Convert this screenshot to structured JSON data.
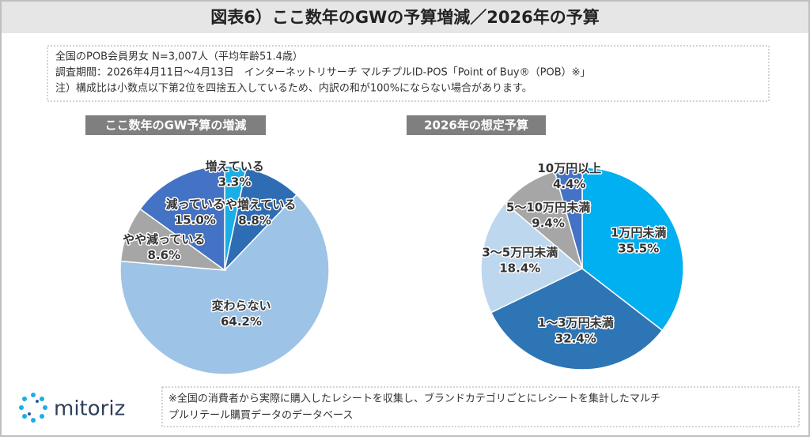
{
  "header": {
    "title": "図表6）ここ数年のGWの予算増減／2026年の予算"
  },
  "notes": [
    "全国のPOB会員男女 N=3,007人（平均年齢51.4歳）",
    "調査期間：2026年4月11日～4月13日　インターネットリサーチ マルチプルID-POS「Point of Buy®（POB）※」",
    "注）構成比は小数点以下第2位を四捨五入しているため、内訳の和が100%にならない場合があります。"
  ],
  "chart_data": [
    {
      "type": "pie",
      "title": "ここ数年のGW予算の増減",
      "categories": [
        "増えている",
        "やや増えている",
        "変わらない",
        "やや減っている",
        "減っている"
      ],
      "values": [
        3.3,
        8.8,
        64.2,
        8.6,
        15.0
      ],
      "value_labels": [
        "3.3%",
        "8.8%",
        "64.2%",
        "8.6%",
        "15.0%"
      ],
      "colors": [
        "#1aaee6",
        "#2e6db4",
        "#9dc3e6",
        "#a6a6a6",
        "#4472c4"
      ]
    },
    {
      "type": "pie",
      "title": "2026年の想定予算",
      "categories": [
        "1万円未満",
        "1～3万円未満",
        "3～5万円未満",
        "5～10万円未満",
        "10万円以上"
      ],
      "values": [
        35.5,
        32.4,
        18.4,
        9.4,
        4.4
      ],
      "value_labels": [
        "35.5%",
        "32.4%",
        "18.4%",
        "9.4%",
        "4.4%"
      ],
      "colors": [
        "#00b0f0",
        "#2e75b6",
        "#bdd7ee",
        "#a6a6a6",
        "#4472c4"
      ]
    }
  ],
  "footer": {
    "logo": "mitoriz",
    "lines": [
      "※全国の消費者から実際に購入したレシートを収集し、ブランドカテゴリごとにレシートを集計したマルチ",
      "プルリテール購買データのデータベース"
    ]
  }
}
